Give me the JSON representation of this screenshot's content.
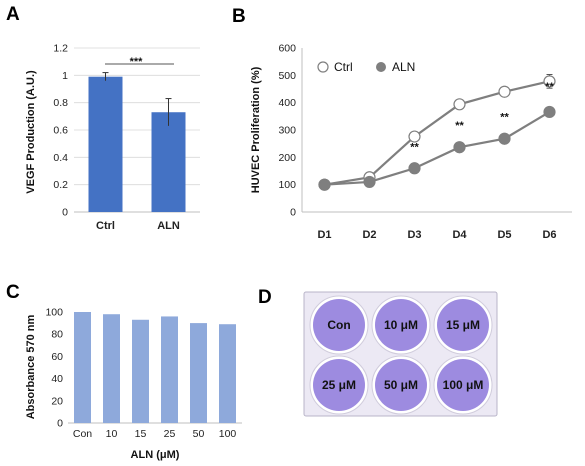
{
  "panels": [
    "A",
    "B",
    "C",
    "D"
  ],
  "chart_data": [
    {
      "id": "A",
      "type": "bar",
      "ylabel": "VEGF Production (A.U.)",
      "ylim": [
        0,
        1.2
      ],
      "yticks": [
        "0",
        "0.2",
        "0.4",
        "0.6",
        "0.8",
        "1",
        "1.2"
      ],
      "categories": [
        "Ctrl",
        "ALN"
      ],
      "values": [
        0.99,
        0.73
      ],
      "errors": [
        0.03,
        0.1
      ],
      "color": "#4472C4",
      "significance": "***"
    },
    {
      "id": "B",
      "type": "line",
      "ylabel": "HUVEC Proliferation (%)",
      "ylim": [
        0,
        600
      ],
      "yticks": [
        "0",
        "100",
        "200",
        "300",
        "400",
        "500",
        "600"
      ],
      "categories": [
        "D1",
        "D2",
        "D3",
        "D4",
        "D5",
        "D6"
      ],
      "series": [
        {
          "name": "Ctrl",
          "values": [
            100,
            127,
            276,
            394,
            440,
            478
          ],
          "errors": [
            0,
            0,
            0,
            0,
            15,
            25
          ],
          "marker": "open",
          "color": "#7f7f7f"
        },
        {
          "name": "ALN",
          "values": [
            100,
            110,
            160,
            237,
            268,
            366
          ],
          "errors": [
            0,
            0,
            0,
            0,
            0,
            0
          ],
          "marker": "filled",
          "color": "#7f7f7f"
        }
      ],
      "annotations": [
        "",
        "",
        "**",
        "**",
        "**",
        "**"
      ]
    },
    {
      "id": "C",
      "type": "bar",
      "ylabel": "Absorbance 570 nm",
      "xlabel": "ALN (μM)",
      "ylim": [
        0,
        100
      ],
      "yticks": [
        "0",
        "20",
        "40",
        "60",
        "80",
        "100"
      ],
      "categories": [
        "Con",
        "10",
        "15",
        "25",
        "50",
        "100"
      ],
      "values": [
        100,
        98,
        93,
        96,
        90,
        89
      ],
      "color": "#8EA9DB"
    }
  ],
  "plate": {
    "wells": [
      "Con",
      "10 μM",
      "15 μM",
      "25 μM",
      "50 μM",
      "100 μM"
    ],
    "well_color": "#9D8BE0",
    "plate_color": "#ECE9F4"
  }
}
